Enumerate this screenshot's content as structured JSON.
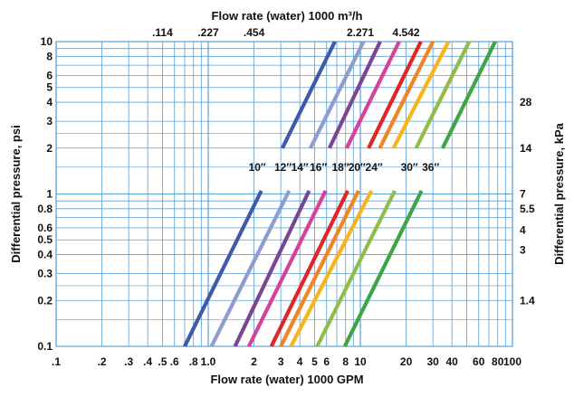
{
  "chart_data": {
    "type": "line",
    "title": "Flow rate (water) 1000 m³/h",
    "xlabel": "Flow rate (water) 1000 GPM",
    "ylabel": "Differential pressure, psi",
    "y2label": "Differential pressure, kPa",
    "x_scale": "log",
    "y_scale": "log",
    "xlim": [
      0.1,
      100
    ],
    "ylim": [
      0.1,
      10
    ],
    "grid": true,
    "x_ticks": [
      {
        "v": 0.1,
        "label": ".1"
      },
      {
        "v": 0.2,
        "label": ".2"
      },
      {
        "v": 0.3,
        "label": ".3"
      },
      {
        "v": 0.4,
        "label": ".4"
      },
      {
        "v": 0.5,
        "label": ".5"
      },
      {
        "v": 0.6,
        "label": ".6"
      },
      {
        "v": 0.8,
        "label": ".8"
      },
      {
        "v": 1.0,
        "label": "1.0"
      },
      {
        "v": 2,
        "label": "2"
      },
      {
        "v": 3,
        "label": "3"
      },
      {
        "v": 4,
        "label": "4"
      },
      {
        "v": 5,
        "label": "5"
      },
      {
        "v": 6,
        "label": "6"
      },
      {
        "v": 8,
        "label": "8"
      },
      {
        "v": 10,
        "label": "10"
      },
      {
        "v": 20,
        "label": "20"
      },
      {
        "v": 30,
        "label": "30"
      },
      {
        "v": 40,
        "label": "40"
      },
      {
        "v": 60,
        "label": "60"
      },
      {
        "v": 80,
        "label": "80"
      },
      {
        "v": 100,
        "label": "100"
      }
    ],
    "x2_ticks": [
      {
        "v": 0.5,
        "label": ".114"
      },
      {
        "v": 1.0,
        "label": ".227"
      },
      {
        "v": 2.0,
        "label": ".454"
      },
      {
        "v": 10,
        "label": "2.271"
      },
      {
        "v": 20,
        "label": "4.542"
      }
    ],
    "y_ticks": [
      {
        "v": 0.1,
        "label": "0.1"
      },
      {
        "v": 0.2,
        "label": "0.2"
      },
      {
        "v": 0.3,
        "label": "0.3"
      },
      {
        "v": 0.4,
        "label": "0.4"
      },
      {
        "v": 0.5,
        "label": "0.5"
      },
      {
        "v": 0.6,
        "label": "0.6"
      },
      {
        "v": 0.8,
        "label": "0.8"
      },
      {
        "v": 1,
        "label": "1"
      },
      {
        "v": 2,
        "label": "2"
      },
      {
        "v": 3,
        "label": "3"
      },
      {
        "v": 4,
        "label": "4"
      },
      {
        "v": 5,
        "label": "5"
      },
      {
        "v": 6,
        "label": "6"
      },
      {
        "v": 8,
        "label": "8"
      },
      {
        "v": 10,
        "label": "10"
      }
    ],
    "y2_ticks": [
      {
        "v": 0.2,
        "label": "1.4"
      },
      {
        "v": 0.43,
        "label": "3"
      },
      {
        "v": 0.58,
        "label": "4"
      },
      {
        "v": 0.8,
        "label": "5.5"
      },
      {
        "v": 1,
        "label": "7"
      },
      {
        "v": 2,
        "label": "14"
      },
      {
        "v": 4,
        "label": "28"
      }
    ],
    "series": [
      {
        "name": "10″",
        "color": "#3f5aa9",
        "x": [
          0.7,
          6.8
        ],
        "y": [
          0.1,
          10
        ],
        "label_x": 2.1,
        "label_y": 1.5
      },
      {
        "name": "12″",
        "color": "#8c9ed1",
        "x": [
          1.05,
          10.5
        ],
        "y": [
          0.1,
          10
        ],
        "label_x": 3.1,
        "label_y": 1.5
      },
      {
        "name": "14″",
        "color": "#7b4596",
        "x": [
          1.5,
          13.5
        ],
        "y": [
          0.1,
          10
        ],
        "label_x": 4.0,
        "label_y": 1.5
      },
      {
        "name": "16″",
        "color": "#d2449a",
        "x": [
          1.85,
          18
        ],
        "y": [
          0.1,
          10
        ],
        "label_x": 5.3,
        "label_y": 1.5
      },
      {
        "name": "18″",
        "color": "#e02528",
        "x": [
          2.6,
          25
        ],
        "y": [
          0.1,
          10
        ],
        "label_x": 7.4,
        "label_y": 1.5
      },
      {
        "name": "20″",
        "color": "#ef8526",
        "x": [
          3.0,
          30
        ],
        "y": [
          0.1,
          10
        ],
        "label_x": 9.5,
        "label_y": 1.5
      },
      {
        "name": "24″",
        "color": "#f7b51d",
        "x": [
          3.5,
          38
        ],
        "y": [
          0.1,
          10
        ],
        "label_x": 12.3,
        "label_y": 1.5
      },
      {
        "name": "30″",
        "color": "#8ebd4c",
        "x": [
          5.2,
          52
        ],
        "y": [
          0.1,
          10
        ],
        "label_x": 21,
        "label_y": 1.5
      },
      {
        "name": "36″",
        "color": "#3ea547",
        "x": [
          7.9,
          77
        ],
        "y": [
          0.1,
          10
        ],
        "label_x": 29,
        "label_y": 1.5
      }
    ]
  }
}
